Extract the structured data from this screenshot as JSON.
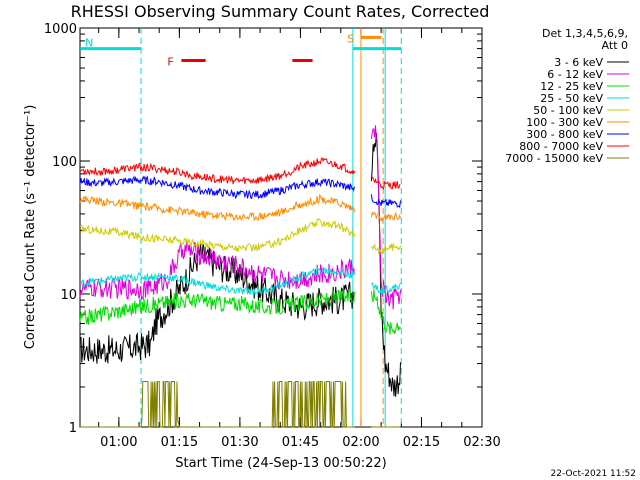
{
  "chart_data": {
    "type": "line",
    "title": "RHESSI Observing Summary Count Rates, Corrected",
    "xlabel": "Start Time (24-Sep-13 00:50:22)",
    "ylabel": "Corrected Count Rate (s⁻¹ detector⁻¹)",
    "y_scale": "log",
    "ylim": [
      1,
      1000
    ],
    "y_tick_labels": [
      "1",
      "10",
      "100",
      "1000"
    ],
    "x_tick_labels": [
      "01:00",
      "01:15",
      "01:30",
      "01:45",
      "02:00",
      "02:15",
      "02:30"
    ],
    "x_ticks_minutes": [
      60,
      75,
      90,
      105,
      120,
      135,
      150
    ],
    "xlim_minutes": [
      50.37,
      150
    ],
    "legend_title": [
      "Det 1,3,4,5,6,9,",
      "Att 0"
    ],
    "legend_position": "right",
    "series": [
      {
        "name": "3 - 6 keV",
        "color": "#000000",
        "x": [
          50.4,
          55,
          60,
          65,
          68,
          69,
          72,
          76,
          80,
          85,
          90,
          95,
          100,
          105,
          110,
          115,
          118,
          120,
          121,
          122,
          123,
          124,
          124.5,
          125,
          126,
          127,
          128,
          129,
          130
        ],
        "y": [
          3.8,
          3.8,
          3.8,
          4,
          4.2,
          6,
          8,
          12,
          20,
          16,
          14,
          11,
          9,
          8,
          9,
          9,
          10,
          11,
          15,
          30,
          150,
          140,
          40,
          8,
          3,
          2.5,
          2,
          2.2,
          2.5
        ]
      },
      {
        "name": "6 - 12 keV",
        "color": "#dd00dd",
        "x": [
          50.4,
          55,
          60,
          65,
          68,
          72,
          76,
          80,
          85,
          90,
          95,
          100,
          105,
          110,
          115,
          118,
          120,
          121,
          122,
          123,
          124,
          124.5,
          125,
          126,
          127,
          128,
          129,
          130
        ],
        "y": [
          11,
          11,
          11,
          11,
          11,
          13,
          22,
          20,
          18,
          16,
          14,
          13,
          13,
          14,
          15,
          16,
          20,
          30,
          80,
          170,
          160,
          40,
          12,
          10,
          9,
          9,
          10,
          10
        ]
      },
      {
        "name": "12 - 25 keV",
        "color": "#00dd00",
        "x": [
          50.4,
          55,
          60,
          65,
          70,
          75,
          80,
          85,
          90,
          95,
          100,
          105,
          110,
          115,
          118,
          120,
          122,
          124,
          125,
          126,
          127,
          128,
          129,
          130
        ],
        "y": [
          6.5,
          7,
          7.5,
          8,
          8.5,
          9,
          9,
          8.5,
          8.5,
          8,
          8,
          8.5,
          9,
          9.5,
          9.5,
          9.5,
          10,
          9.5,
          7,
          6,
          5.5,
          5.5,
          6,
          6
        ]
      },
      {
        "name": "25 - 50 keV",
        "color": "#00dddd",
        "x": [
          50.4,
          55,
          60,
          65,
          70,
          75,
          80,
          85,
          90,
          95,
          100,
          105,
          110,
          115,
          118,
          120,
          122,
          124,
          125,
          126,
          127,
          128,
          129,
          130
        ],
        "y": [
          12,
          12.5,
          13,
          13.5,
          13.5,
          13,
          12,
          11,
          10.5,
          10.5,
          11.5,
          13.5,
          15,
          14.5,
          14,
          13,
          12,
          11,
          10.5,
          11,
          11,
          11,
          11.5,
          11.5
        ]
      },
      {
        "name": "50 - 100 keV",
        "color": "#cccc00",
        "x": [
          50.4,
          55,
          60,
          65,
          70,
          75,
          80,
          85,
          90,
          95,
          100,
          105,
          110,
          115,
          118,
          120,
          122,
          124,
          125,
          126,
          127,
          128,
          129,
          130
        ],
        "y": [
          31,
          30,
          29,
          27,
          26,
          25,
          24,
          23,
          22,
          22.5,
          25,
          30,
          35,
          32,
          28,
          26,
          24,
          22,
          21,
          22,
          22.5,
          22.5,
          23,
          23
        ]
      },
      {
        "name": "100 - 300 keV",
        "color": "#ff8c00",
        "x": [
          50.4,
          55,
          60,
          65,
          70,
          75,
          80,
          85,
          90,
          95,
          100,
          105,
          110,
          115,
          118,
          120,
          122,
          124,
          125,
          126,
          127,
          128,
          129,
          130
        ],
        "y": [
          52,
          50,
          48,
          46,
          44,
          42,
          40,
          39,
          38,
          38.5,
          41,
          47,
          52,
          48,
          44,
          42,
          40,
          38,
          37,
          37.5,
          38,
          38,
          38.5,
          38.5
        ]
      },
      {
        "name": "300 - 800 keV",
        "color": "#0000ff",
        "x": [
          50.4,
          55,
          60,
          65,
          70,
          75,
          80,
          85,
          90,
          95,
          100,
          105,
          110,
          115,
          118,
          120,
          122,
          124,
          125,
          126,
          127,
          128,
          129,
          130
        ],
        "y": [
          70,
          68,
          70,
          72,
          70,
          65,
          60,
          58,
          56,
          56,
          60,
          66,
          70,
          66,
          62,
          58,
          54,
          50,
          48,
          48,
          48,
          48,
          48,
          48
        ]
      },
      {
        "name": "800 - 7000 keV",
        "color": "#ff0000",
        "x": [
          50.4,
          55,
          60,
          65,
          70,
          75,
          80,
          85,
          90,
          95,
          100,
          105,
          110,
          115,
          118,
          120,
          122,
          124,
          125,
          126,
          127,
          128,
          129,
          130
        ],
        "y": [
          85,
          83,
          86,
          90,
          87,
          82,
          76,
          73,
          71,
          72,
          78,
          90,
          100,
          92,
          84,
          80,
          75,
          70,
          66,
          66,
          66,
          66,
          66,
          66
        ]
      },
      {
        "name": "7000 - 15000 keV",
        "color": "#808000",
        "x": [
          50.4,
          60,
          65.5,
          67,
          70,
          72,
          75,
          85,
          98,
          99,
          100,
          102,
          104,
          106,
          108,
          110,
          112,
          114,
          116,
          117,
          130
        ],
        "y": [
          1,
          1,
          1,
          2.2,
          2.1,
          2.2,
          1,
          1,
          1,
          2.2,
          2.1,
          2.2,
          2.1,
          2.2,
          2.2,
          2.1,
          2.2,
          2.1,
          2.2,
          1,
          1
        ]
      }
    ],
    "annotations": [
      {
        "label": "N",
        "color": "#00dddd",
        "y": 700,
        "x_start": 50.4,
        "x_end": 65.5
      },
      {
        "label": "",
        "color": "#00dddd",
        "y": 700,
        "x_start": 118,
        "x_end": 130
      },
      {
        "label": "F",
        "color": "#ee0000",
        "y": 570,
        "x_start": 75.5,
        "x_end": 81.5
      },
      {
        "label": "",
        "color": "#ee0000",
        "y": 570,
        "x_start": 103,
        "x_end": 108
      },
      {
        "label": "S",
        "color": "#ff8c00",
        "y": 850,
        "x_start": 120,
        "x_end": 125
      }
    ],
    "vertical_markers": [
      {
        "color": "#00dddd",
        "style": "dashed",
        "x": 65.5
      },
      {
        "color": "#00dddd",
        "style": "solid",
        "x": 118
      },
      {
        "color": "#ff8c00",
        "style": "solid",
        "x": 120
      },
      {
        "color": "#ff8c00",
        "style": "dashed",
        "x": 125.5
      },
      {
        "color": "#00dddd",
        "style": "solid",
        "x": 126
      },
      {
        "color": "#00dddd",
        "style": "dashed",
        "x": 130
      }
    ],
    "gaps_minutes": [
      [
        118.5,
        122.5
      ]
    ],
    "grid": false
  },
  "footer_timestamp": "22-Oct-2021 11:52"
}
